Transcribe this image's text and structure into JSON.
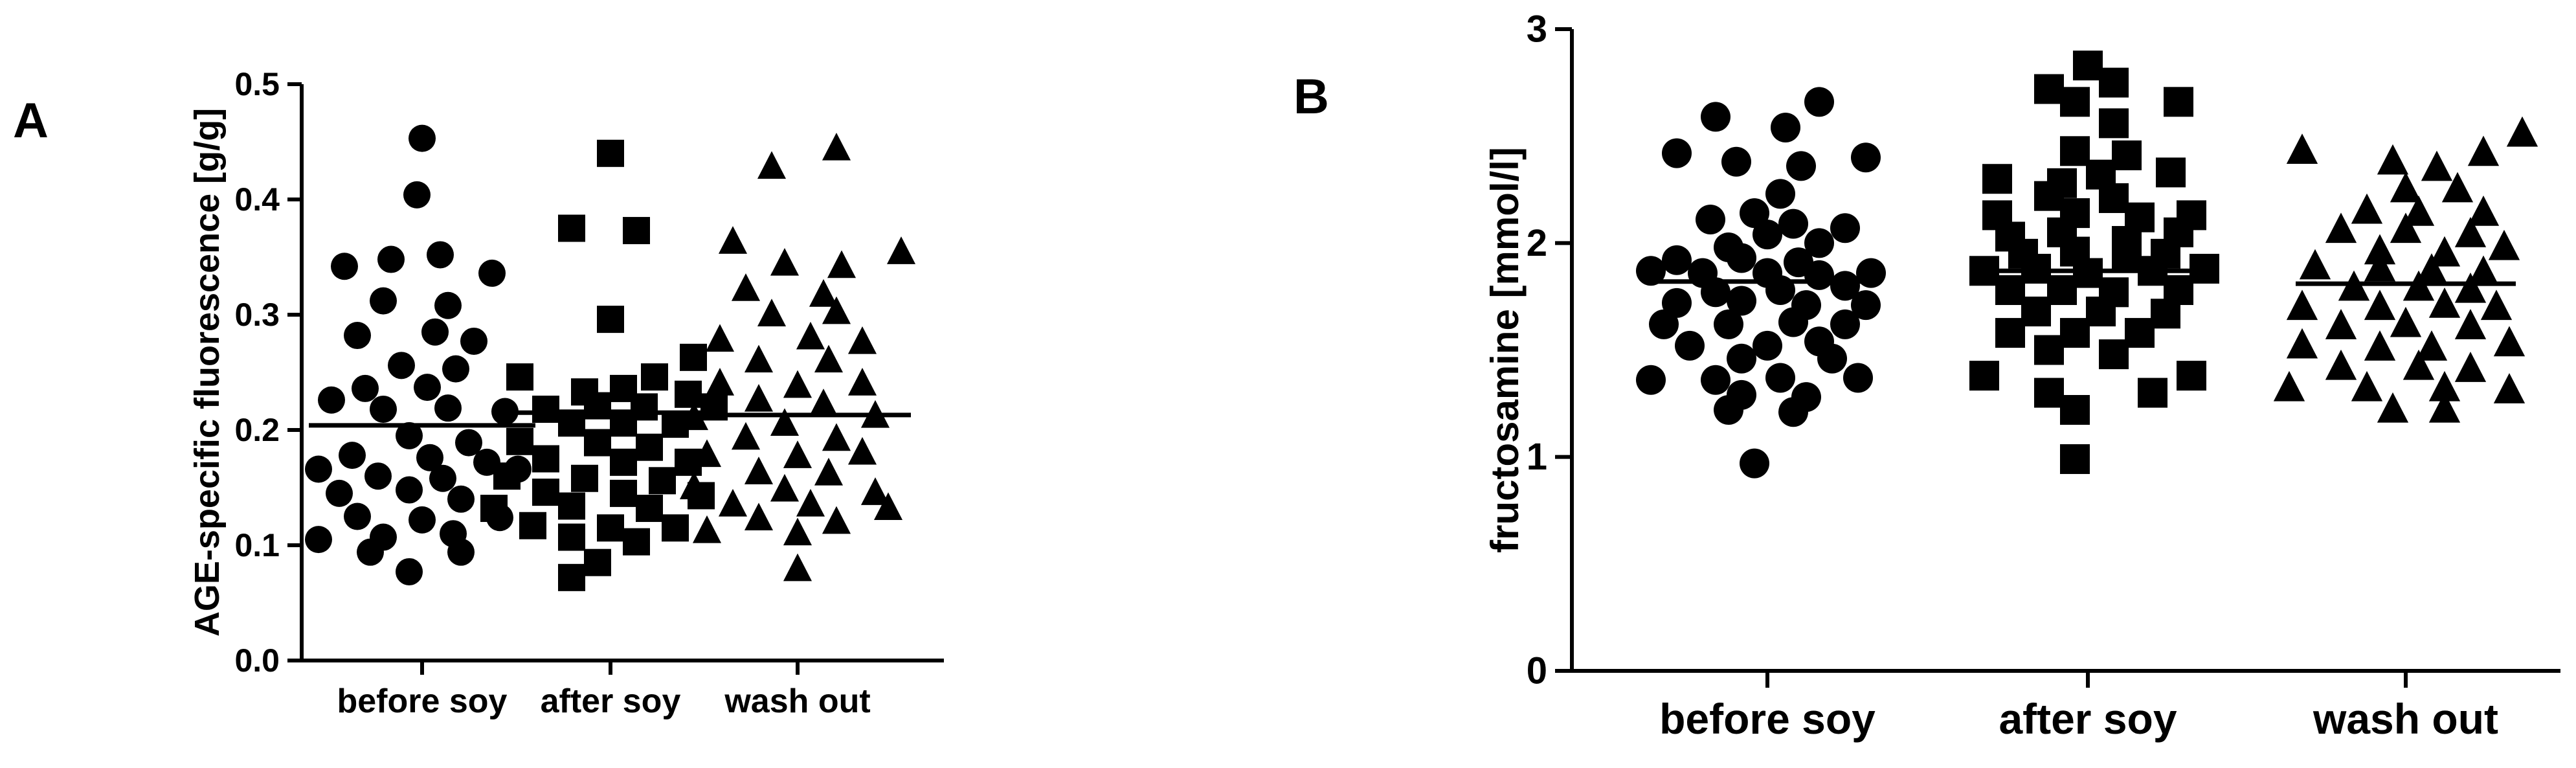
{
  "chart_data": [
    {
      "type": "scatter",
      "panel_label": "A",
      "title": "",
      "xlabel": "",
      "ylabel": "AGE-specific fluorescence [g/g]",
      "ylim": [
        0,
        0.5
      ],
      "yticks": [
        "0.0",
        "0.1",
        "0.2",
        "0.3",
        "0.4",
        "0.5"
      ],
      "categories": [
        "before soy",
        "after soy",
        "wash out"
      ],
      "markers": [
        "circle",
        "square",
        "triangle"
      ],
      "grid": false,
      "series": [
        {
          "category": "before soy",
          "mean": 0.204,
          "points": [
            [
              0.0,
              0.453
            ],
            [
              -0.02,
              0.404
            ],
            [
              -0.3,
              0.342
            ],
            [
              -0.12,
              0.348
            ],
            [
              0.07,
              0.352
            ],
            [
              0.27,
              0.336
            ],
            [
              -0.15,
              0.312
            ],
            [
              0.1,
              0.308
            ],
            [
              -0.25,
              0.282
            ],
            [
              0.05,
              0.285
            ],
            [
              0.2,
              0.277
            ],
            [
              -0.08,
              0.256
            ],
            [
              0.13,
              0.253
            ],
            [
              -0.22,
              0.236
            ],
            [
              0.02,
              0.237
            ],
            [
              -0.35,
              0.226
            ],
            [
              -0.15,
              0.218
            ],
            [
              0.1,
              0.219
            ],
            [
              0.32,
              0.216
            ],
            [
              -0.05,
              0.195
            ],
            [
              0.18,
              0.189
            ],
            [
              -0.27,
              0.178
            ],
            [
              0.03,
              0.176
            ],
            [
              0.25,
              0.172
            ],
            [
              -0.4,
              0.166
            ],
            [
              -0.17,
              0.16
            ],
            [
              0.08,
              0.158
            ],
            [
              0.37,
              0.166
            ],
            [
              -0.32,
              0.145
            ],
            [
              -0.05,
              0.148
            ],
            [
              0.15,
              0.14
            ],
            [
              -0.25,
              0.125
            ],
            [
              0.0,
              0.122
            ],
            [
              0.3,
              0.124
            ],
            [
              -0.4,
              0.105
            ],
            [
              -0.15,
              0.107
            ],
            [
              0.12,
              0.11
            ],
            [
              -0.2,
              0.094
            ],
            [
              0.15,
              0.094
            ],
            [
              -0.05,
              0.077
            ]
          ]
        },
        {
          "category": "after soy",
          "mean": 0.215,
          "points": [
            [
              0.0,
              0.44
            ],
            [
              -0.15,
              0.375
            ],
            [
              0.1,
              0.373
            ],
            [
              0.0,
              0.296
            ],
            [
              0.32,
              0.263
            ],
            [
              -0.35,
              0.246
            ],
            [
              0.17,
              0.246
            ],
            [
              -0.1,
              0.233
            ],
            [
              0.05,
              0.236
            ],
            [
              0.3,
              0.231
            ],
            [
              -0.25,
              0.218
            ],
            [
              -0.05,
              0.221
            ],
            [
              0.13,
              0.22
            ],
            [
              0.4,
              0.22
            ],
            [
              -0.15,
              0.206
            ],
            [
              0.05,
              0.206
            ],
            [
              0.25,
              0.205
            ],
            [
              -0.35,
              0.19
            ],
            [
              -0.05,
              0.189
            ],
            [
              0.15,
              0.185
            ],
            [
              -0.25,
              0.175
            ],
            [
              0.05,
              0.172
            ],
            [
              0.3,
              0.172
            ],
            [
              -0.4,
              0.16
            ],
            [
              -0.1,
              0.158
            ],
            [
              0.2,
              0.156
            ],
            [
              -0.25,
              0.146
            ],
            [
              0.05,
              0.145
            ],
            [
              0.35,
              0.143
            ],
            [
              -0.45,
              0.132
            ],
            [
              -0.15,
              0.134
            ],
            [
              0.15,
              0.132
            ],
            [
              -0.3,
              0.117
            ],
            [
              0.0,
              0.115
            ],
            [
              0.25,
              0.115
            ],
            [
              -0.15,
              0.107
            ],
            [
              0.1,
              0.103
            ],
            [
              -0.05,
              0.085
            ],
            [
              -0.15,
              0.072
            ]
          ]
        },
        {
          "category": "wash out",
          "mean": 0.213,
          "points": [
            [
              0.15,
              0.444
            ],
            [
              -0.1,
              0.428
            ],
            [
              -0.25,
              0.363
            ],
            [
              0.4,
              0.354
            ],
            [
              -0.05,
              0.344
            ],
            [
              0.17,
              0.342
            ],
            [
              -0.2,
              0.322
            ],
            [
              0.1,
              0.317
            ],
            [
              -0.1,
              0.3
            ],
            [
              0.15,
              0.302
            ],
            [
              -0.3,
              0.278
            ],
            [
              0.05,
              0.28
            ],
            [
              0.25,
              0.276
            ],
            [
              -0.15,
              0.26
            ],
            [
              0.12,
              0.26
            ],
            [
              -0.3,
              0.24
            ],
            [
              0.0,
              0.238
            ],
            [
              0.25,
              0.24
            ],
            [
              -0.15,
              0.226
            ],
            [
              0.1,
              0.222
            ],
            [
              -0.4,
              0.21
            ],
            [
              -0.05,
              0.205
            ],
            [
              0.3,
              0.212
            ],
            [
              -0.2,
              0.193
            ],
            [
              0.15,
              0.192
            ],
            [
              -0.35,
              0.178
            ],
            [
              0.0,
              0.177
            ],
            [
              0.25,
              0.18
            ],
            [
              -0.15,
              0.163
            ],
            [
              0.12,
              0.162
            ],
            [
              -0.4,
              0.15
            ],
            [
              -0.05,
              0.148
            ],
            [
              0.3,
              0.145
            ],
            [
              -0.25,
              0.135
            ],
            [
              0.05,
              0.135
            ],
            [
              0.35,
              0.132
            ],
            [
              -0.15,
              0.123
            ],
            [
              0.15,
              0.12
            ],
            [
              -0.35,
              0.112
            ],
            [
              0.0,
              0.11
            ],
            [
              0.0,
              0.079
            ]
          ]
        }
      ]
    },
    {
      "type": "scatter",
      "panel_label": "B",
      "title": "",
      "xlabel": "",
      "ylabel": "fructosamine [mmol/l]",
      "ylim": [
        0,
        3
      ],
      "yticks": [
        "0",
        "1",
        "2",
        "3"
      ],
      "categories": [
        "before soy",
        "after soy",
        "wash out"
      ],
      "markers": [
        "circle",
        "square",
        "triangle"
      ],
      "grid": false,
      "series": [
        {
          "category": "before soy",
          "mean": 1.82,
          "points": [
            [
              0.2,
              2.66
            ],
            [
              -0.2,
              2.59
            ],
            [
              0.07,
              2.54
            ],
            [
              -0.35,
              2.42
            ],
            [
              -0.12,
              2.38
            ],
            [
              0.13,
              2.36
            ],
            [
              0.38,
              2.4
            ],
            [
              0.05,
              2.23
            ],
            [
              -0.05,
              2.14
            ],
            [
              0.1,
              2.09
            ],
            [
              -0.22,
              2.11
            ],
            [
              0.3,
              2.07
            ],
            [
              0.2,
              2.0
            ],
            [
              -0.15,
              1.98
            ],
            [
              0.0,
              2.04
            ],
            [
              -0.35,
              1.92
            ],
            [
              -0.1,
              1.93
            ],
            [
              0.12,
              1.91
            ],
            [
              -0.45,
              1.87
            ],
            [
              -0.25,
              1.86
            ],
            [
              0.0,
              1.86
            ],
            [
              0.2,
              1.85
            ],
            [
              0.4,
              1.86
            ],
            [
              -0.2,
              1.77
            ],
            [
              0.05,
              1.78
            ],
            [
              0.3,
              1.8
            ],
            [
              -0.35,
              1.72
            ],
            [
              -0.1,
              1.73
            ],
            [
              0.15,
              1.71
            ],
            [
              0.38,
              1.71
            ],
            [
              -0.4,
              1.62
            ],
            [
              -0.15,
              1.62
            ],
            [
              0.1,
              1.63
            ],
            [
              0.3,
              1.62
            ],
            [
              -0.3,
              1.52
            ],
            [
              0.0,
              1.52
            ],
            [
              0.2,
              1.54
            ],
            [
              -0.1,
              1.46
            ],
            [
              0.25,
              1.46
            ],
            [
              -0.45,
              1.36
            ],
            [
              -0.2,
              1.36
            ],
            [
              0.05,
              1.37
            ],
            [
              0.35,
              1.37
            ],
            [
              -0.1,
              1.29
            ],
            [
              0.15,
              1.28
            ],
            [
              -0.15,
              1.22
            ],
            [
              0.1,
              1.21
            ],
            [
              -0.05,
              0.97
            ]
          ]
        },
        {
          "category": "after soy",
          "mean": 1.87,
          "points": [
            [
              0.0,
              2.83
            ],
            [
              -0.15,
              2.72
            ],
            [
              0.1,
              2.75
            ],
            [
              -0.05,
              2.66
            ],
            [
              0.35,
              2.66
            ],
            [
              0.1,
              2.56
            ],
            [
              -0.05,
              2.43
            ],
            [
              0.15,
              2.41
            ],
            [
              -0.35,
              2.3
            ],
            [
              -0.1,
              2.28
            ],
            [
              0.05,
              2.32
            ],
            [
              0.32,
              2.33
            ],
            [
              -0.15,
              2.22
            ],
            [
              0.1,
              2.21
            ],
            [
              -0.35,
              2.13
            ],
            [
              -0.05,
              2.14
            ],
            [
              0.2,
              2.12
            ],
            [
              0.4,
              2.13
            ],
            [
              -0.3,
              2.03
            ],
            [
              -0.1,
              2.05
            ],
            [
              0.15,
              2.01
            ],
            [
              0.35,
              2.05
            ],
            [
              -0.25,
              1.95
            ],
            [
              -0.05,
              1.96
            ],
            [
              0.15,
              1.93
            ],
            [
              0.3,
              1.95
            ],
            [
              -0.4,
              1.87
            ],
            [
              -0.2,
              1.88
            ],
            [
              0.0,
              1.86
            ],
            [
              0.25,
              1.87
            ],
            [
              0.45,
              1.88
            ],
            [
              -0.3,
              1.78
            ],
            [
              -0.1,
              1.78
            ],
            [
              0.1,
              1.77
            ],
            [
              0.35,
              1.78
            ],
            [
              -0.2,
              1.68
            ],
            [
              0.05,
              1.68
            ],
            [
              0.3,
              1.67
            ],
            [
              -0.3,
              1.58
            ],
            [
              -0.05,
              1.58
            ],
            [
              0.2,
              1.58
            ],
            [
              -0.15,
              1.5
            ],
            [
              0.1,
              1.48
            ],
            [
              -0.4,
              1.38
            ],
            [
              0.4,
              1.38
            ],
            [
              -0.15,
              1.3
            ],
            [
              0.25,
              1.3
            ],
            [
              -0.05,
              1.22
            ],
            [
              -0.05,
              0.99
            ]
          ]
        },
        {
          "category": "wash out",
          "mean": 1.81,
          "points": [
            [
              0.45,
              2.51
            ],
            [
              -0.4,
              2.43
            ],
            [
              0.3,
              2.42
            ],
            [
              -0.05,
              2.38
            ],
            [
              0.12,
              2.35
            ],
            [
              0.0,
              2.25
            ],
            [
              0.2,
              2.25
            ],
            [
              -0.15,
              2.15
            ],
            [
              0.05,
              2.14
            ],
            [
              0.3,
              2.14
            ],
            [
              -0.25,
              2.06
            ],
            [
              0.0,
              2.06
            ],
            [
              0.25,
              2.04
            ],
            [
              -0.1,
              1.96
            ],
            [
              0.15,
              1.95
            ],
            [
              0.38,
              1.98
            ],
            [
              -0.35,
              1.89
            ],
            [
              -0.1,
              1.88
            ],
            [
              0.1,
              1.87
            ],
            [
              0.3,
              1.86
            ],
            [
              -0.2,
              1.79
            ],
            [
              0.05,
              1.79
            ],
            [
              0.25,
              1.78
            ],
            [
              -0.4,
              1.7
            ],
            [
              -0.1,
              1.7
            ],
            [
              0.15,
              1.71
            ],
            [
              0.35,
              1.7
            ],
            [
              -0.25,
              1.61
            ],
            [
              0.0,
              1.62
            ],
            [
              0.25,
              1.61
            ],
            [
              -0.4,
              1.52
            ],
            [
              -0.1,
              1.51
            ],
            [
              0.1,
              1.51
            ],
            [
              0.4,
              1.53
            ],
            [
              -0.25,
              1.42
            ],
            [
              0.05,
              1.42
            ],
            [
              0.25,
              1.41
            ],
            [
              -0.45,
              1.32
            ],
            [
              -0.15,
              1.32
            ],
            [
              0.15,
              1.32
            ],
            [
              0.4,
              1.31
            ],
            [
              -0.05,
              1.22
            ],
            [
              0.15,
              1.22
            ]
          ]
        }
      ]
    }
  ]
}
